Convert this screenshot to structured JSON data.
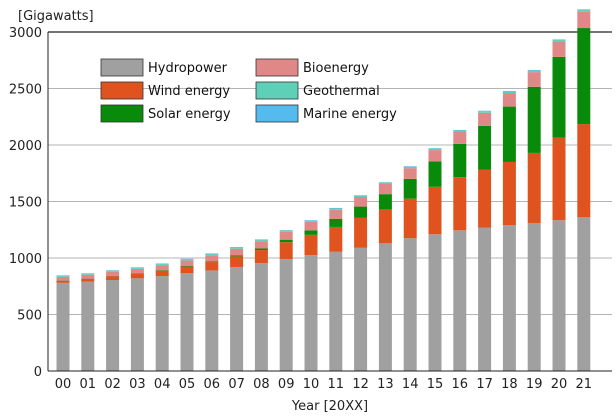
{
  "chart_data": {
    "type": "bar",
    "stacked": true,
    "title": "",
    "ylabel": "[Gigawatts]",
    "xlabel": "Year [20XX]",
    "ylim": [
      0,
      3000
    ],
    "yticks": [
      0,
      500,
      1000,
      1500,
      2000,
      2500,
      3000
    ],
    "grid": true,
    "legend_position": "top-left",
    "categories": [
      "00",
      "01",
      "02",
      "03",
      "04",
      "05",
      "06",
      "07",
      "08",
      "09",
      "10",
      "11",
      "12",
      "13",
      "14",
      "15",
      "16",
      "17",
      "18",
      "19",
      "20",
      "21"
    ],
    "series": [
      {
        "name": "Hydropower",
        "color": "#a0a0a0",
        "values": [
          780,
          790,
          805,
          820,
          840,
          865,
          890,
          920,
          955,
          990,
          1025,
          1055,
          1090,
          1130,
          1175,
          1210,
          1245,
          1270,
          1290,
          1310,
          1335,
          1360
        ]
      },
      {
        "name": "Wind energy",
        "color": "#e0531f",
        "values": [
          17,
          24,
          31,
          39,
          48,
          59,
          74,
          94,
          115,
          150,
          180,
          220,
          265,
          300,
          350,
          420,
          470,
          510,
          560,
          620,
          730,
          825
        ]
      },
      {
        "name": "Solar energy",
        "color": "#0a8a0a",
        "values": [
          1,
          1,
          2,
          3,
          4,
          5,
          6,
          8,
          14,
          22,
          40,
          72,
          100,
          135,
          175,
          225,
          295,
          390,
          490,
          585,
          715,
          850
        ]
      },
      {
        "name": "Bioenergy",
        "color": "#e08888",
        "values": [
          35,
          37,
          40,
          42,
          45,
          50,
          55,
          60,
          65,
          70,
          75,
          80,
          85,
          90,
          95,
          100,
          105,
          115,
          120,
          130,
          135,
          145
        ]
      },
      {
        "name": "Geothermal",
        "color": "#5ed0b8",
        "values": [
          8,
          8,
          9,
          9,
          9,
          9,
          10,
          10,
          10,
          10,
          10,
          11,
          11,
          11,
          12,
          12,
          13,
          13,
          13,
          14,
          14,
          15
        ]
      },
      {
        "name": "Marine energy",
        "color": "#55bbee",
        "values": [
          0.3,
          0.3,
          0.3,
          0.3,
          0.3,
          0.3,
          0.3,
          0.3,
          0.3,
          0.3,
          0.3,
          0.5,
          0.5,
          0.5,
          0.5,
          0.5,
          0.5,
          0.5,
          0.5,
          0.5,
          0.5,
          0.5
        ]
      }
    ]
  }
}
